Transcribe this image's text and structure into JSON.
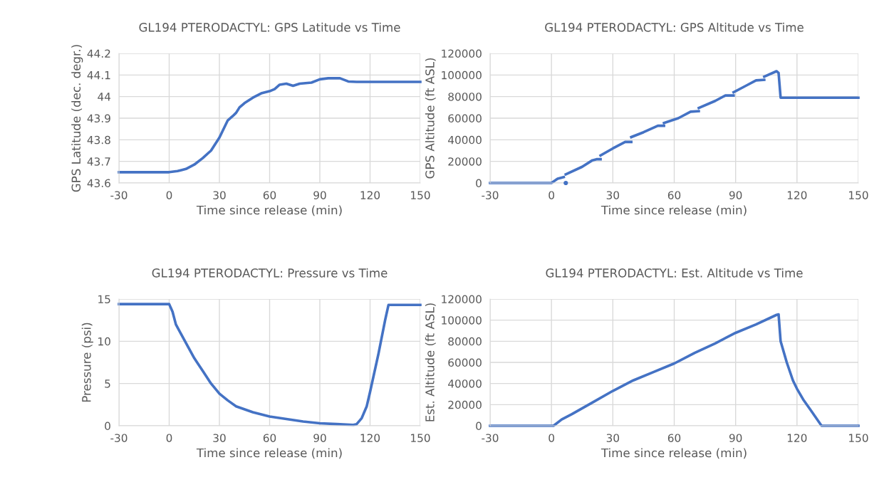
{
  "chart_data": [
    {
      "type": "line",
      "title": "GL194 PTERODACTYL: GPS Latitude vs Time",
      "xlabel": "Time since release (min)",
      "ylabel": "GPS Latitude (dec. degr.)",
      "series": [
        {
          "color": "#4472c4",
          "x": [
            -30,
            0,
            5,
            10,
            15,
            20,
            25,
            30,
            35,
            38,
            40,
            42,
            45,
            50,
            55,
            60,
            63,
            66,
            70,
            74,
            78,
            85,
            90,
            95,
            102,
            107,
            112,
            150
          ],
          "values": [
            43.65,
            43.65,
            43.655,
            43.665,
            43.685,
            43.715,
            43.75,
            43.81,
            43.89,
            43.91,
            43.925,
            43.95,
            43.97,
            43.995,
            44.015,
            44.025,
            44.035,
            44.055,
            44.06,
            44.05,
            44.06,
            44.065,
            44.08,
            44.085,
            44.085,
            44.07,
            44.068,
            44.068
          ]
        }
      ],
      "xlim": [
        -30,
        150
      ],
      "xticks": [
        -30,
        0,
        30,
        60,
        90,
        120,
        150
      ],
      "ylim": [
        43.6,
        44.2
      ],
      "yticks": [
        43.6,
        43.7,
        43.8,
        43.9,
        44,
        44.1,
        44.2
      ],
      "grid": true,
      "legend": false,
      "marker": "none",
      "line_style": "solid"
    },
    {
      "type": "line",
      "title": "GL194 PTERODACTYL: GPS Altitude vs Time",
      "xlabel": "Time since release (min)",
      "ylabel": "GPS Altitude (ft ASL)",
      "series": [
        {
          "color": "#4472c4",
          "x": [
            -30,
            0,
            3,
            6
          ],
          "values": [
            0,
            0,
            4000,
            5500
          ]
        },
        {
          "color": "#4472c4",
          "x": [
            7,
            15,
            20,
            22,
            24
          ],
          "values": [
            8000,
            15000,
            21000,
            22000,
            22000
          ]
        },
        {
          "color": "#4472c4",
          "x": [
            24,
            30,
            36,
            39
          ],
          "values": [
            25500,
            32000,
            38000,
            38000
          ]
        },
        {
          "color": "#4472c4",
          "x": [
            39,
            45,
            52,
            55
          ],
          "values": [
            42500,
            47000,
            53000,
            53000
          ]
        },
        {
          "color": "#4472c4",
          "x": [
            55,
            62,
            68,
            72
          ],
          "values": [
            55500,
            60000,
            66000,
            66500
          ]
        },
        {
          "color": "#4472c4",
          "x": [
            72,
            80,
            85,
            89
          ],
          "values": [
            69500,
            76000,
            81000,
            81000
          ]
        },
        {
          "color": "#4472c4",
          "x": [
            89,
            95,
            100,
            104
          ],
          "values": [
            84000,
            90000,
            95000,
            95500
          ]
        },
        {
          "color": "#4472c4",
          "x": [
            104,
            110,
            111,
            112,
            150
          ],
          "values": [
            98500,
            103500,
            102000,
            79000,
            79000
          ]
        },
        {
          "type": "scatter",
          "color": "#4472c4",
          "x": [
            7
          ],
          "values": [
            0
          ]
        }
      ],
      "xlim": [
        -30,
        150
      ],
      "xticks": [
        -30,
        0,
        30,
        60,
        90,
        120,
        150
      ],
      "ylim": [
        0,
        120000
      ],
      "yticks": [
        0,
        20000,
        40000,
        60000,
        80000,
        100000,
        120000
      ],
      "grid": true,
      "legend": false,
      "marker": "none",
      "line_style": "solid"
    },
    {
      "type": "line",
      "title": "GL194 PTERODACTYL: Pressure vs Time",
      "xlabel": "Time since release (min)",
      "ylabel": "Pressure (psi)",
      "series": [
        {
          "color": "#4472c4",
          "x": [
            -30,
            0,
            2,
            4,
            10,
            15,
            20,
            25,
            30,
            35,
            40,
            50,
            60,
            70,
            80,
            90,
            100,
            110,
            112,
            115,
            118,
            120,
            125,
            129,
            131,
            150
          ],
          "values": [
            14.4,
            14.4,
            13.5,
            12,
            9.8,
            8,
            6.5,
            5,
            3.8,
            3,
            2.3,
            1.6,
            1.1,
            0.8,
            0.5,
            0.3,
            0.2,
            0.1,
            0.2,
            0.9,
            2.3,
            4,
            8.5,
            12.5,
            14.3,
            14.3
          ]
        }
      ],
      "xlim": [
        -30,
        150
      ],
      "xticks": [
        -30,
        0,
        30,
        60,
        90,
        120,
        150
      ],
      "ylim": [
        0,
        15
      ],
      "yticks": [
        0,
        5,
        10,
        15
      ],
      "grid": true,
      "legend": false,
      "marker": "none",
      "line_style": "solid"
    },
    {
      "type": "line",
      "title": "GL194 PTERODACTYL: Est. Altitude vs Time",
      "xlabel": "Time since release (min)",
      "ylabel": "Est. Altitude (ft ASL)",
      "series": [
        {
          "color": "#4472c4",
          "x": [
            -30,
            0,
            1,
            5,
            10,
            20,
            30,
            40,
            50,
            60,
            70,
            80,
            90,
            100,
            110,
            111,
            112,
            115,
            118,
            120,
            123,
            127,
            132,
            150
          ],
          "values": [
            0,
            0,
            0,
            6000,
            11000,
            22000,
            33000,
            43000,
            51000,
            59000,
            69000,
            78000,
            88000,
            96000,
            105000,
            105500,
            80000,
            60000,
            43000,
            35000,
            25000,
            14000,
            0,
            0
          ]
        }
      ],
      "xlim": [
        -30,
        150
      ],
      "xticks": [
        -30,
        0,
        30,
        60,
        90,
        120,
        150
      ],
      "ylim": [
        0,
        120000
      ],
      "yticks": [
        0,
        20000,
        40000,
        60000,
        80000,
        100000,
        120000
      ],
      "grid": true,
      "legend": false,
      "marker": "none",
      "line_style": "solid"
    }
  ]
}
